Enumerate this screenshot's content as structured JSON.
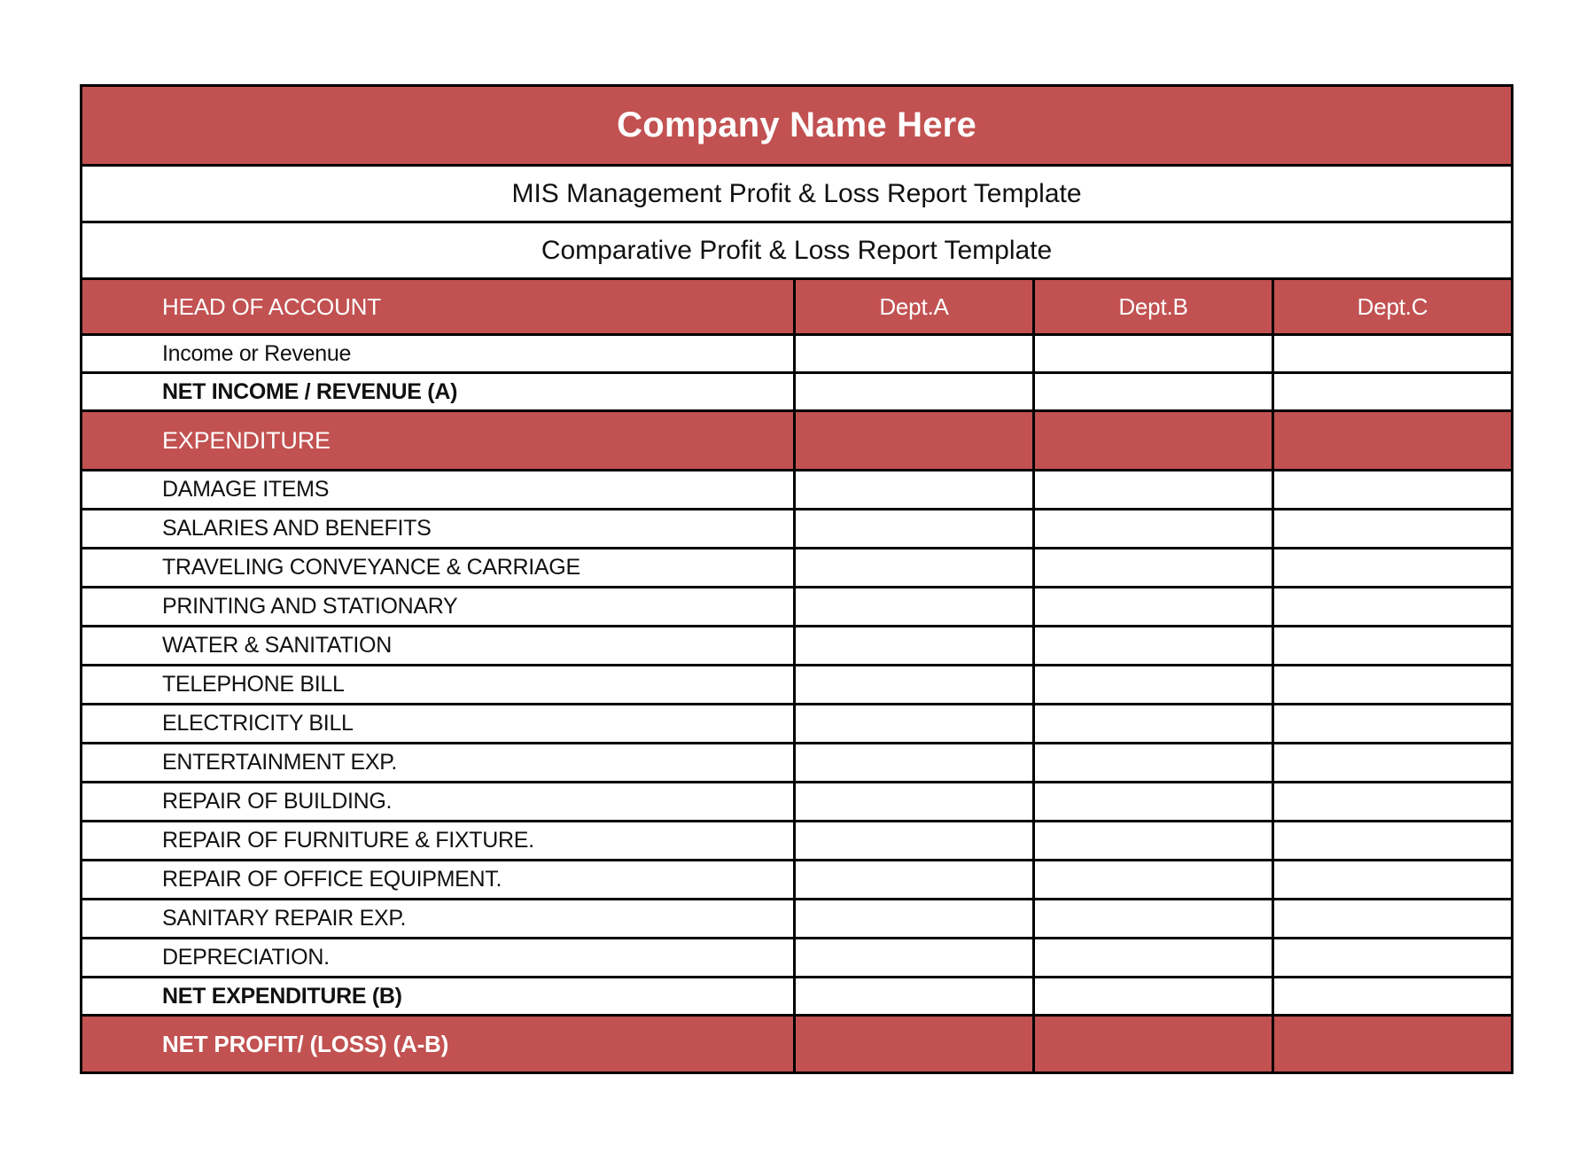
{
  "theme": {
    "accent_red": "#C25151",
    "border_color": "#000000",
    "title_text_color": "#ffffff",
    "body_text_color": "#111111"
  },
  "titles": {
    "company": "Company Name Here",
    "subtitle1": "MIS Management Profit & Loss Report Template",
    "subtitle2": "Comparative Profit & Loss Report Template"
  },
  "table": {
    "header": {
      "head_of_account": "HEAD OF ACCOUNT",
      "dept_a": "Dept.A",
      "dept_b": "Dept.B",
      "dept_c": "Dept.C"
    },
    "rows": [
      {
        "label": "Income or Revenue",
        "values": [
          "",
          "",
          ""
        ]
      },
      {
        "label": "NET INCOME / REVENUE (A)",
        "values": [
          "",
          "",
          ""
        ]
      },
      {
        "label": "EXPENDITURE",
        "values": [
          "",
          "",
          ""
        ]
      },
      {
        "label": "DAMAGE ITEMS",
        "values": [
          "",
          "",
          ""
        ]
      },
      {
        "label": "SALARIES AND BENEFITS",
        "values": [
          "",
          "",
          ""
        ]
      },
      {
        "label": "TRAVELING CONVEYANCE & CARRIAGE",
        "values": [
          "",
          "",
          ""
        ]
      },
      {
        "label": "PRINTING AND STATIONARY",
        "values": [
          "",
          "",
          ""
        ]
      },
      {
        "label": "WATER & SANITATION",
        "values": [
          "",
          "",
          ""
        ]
      },
      {
        "label": "TELEPHONE BILL",
        "values": [
          "",
          "",
          ""
        ]
      },
      {
        "label": "ELECTRICITY BILL",
        "values": [
          "",
          "",
          ""
        ]
      },
      {
        "label": "ENTERTAINMENT EXP.",
        "values": [
          "",
          "",
          ""
        ]
      },
      {
        "label": "REPAIR OF BUILDING.",
        "values": [
          "",
          "",
          ""
        ]
      },
      {
        "label": "REPAIR OF FURNITURE & FIXTURE.",
        "values": [
          "",
          "",
          ""
        ]
      },
      {
        "label": "REPAIR OF OFFICE EQUIPMENT.",
        "values": [
          "",
          "",
          ""
        ]
      },
      {
        "label": "SANITARY REPAIR EXP.",
        "values": [
          "",
          "",
          ""
        ]
      },
      {
        "label": "DEPRECIATION.",
        "values": [
          "",
          "",
          ""
        ]
      },
      {
        "label": "NET EXPENDITURE (B)",
        "values": [
          "",
          "",
          ""
        ]
      },
      {
        "label": "NET PROFIT/ (LOSS) (A-B)",
        "values": [
          "",
          "",
          ""
        ]
      }
    ]
  }
}
